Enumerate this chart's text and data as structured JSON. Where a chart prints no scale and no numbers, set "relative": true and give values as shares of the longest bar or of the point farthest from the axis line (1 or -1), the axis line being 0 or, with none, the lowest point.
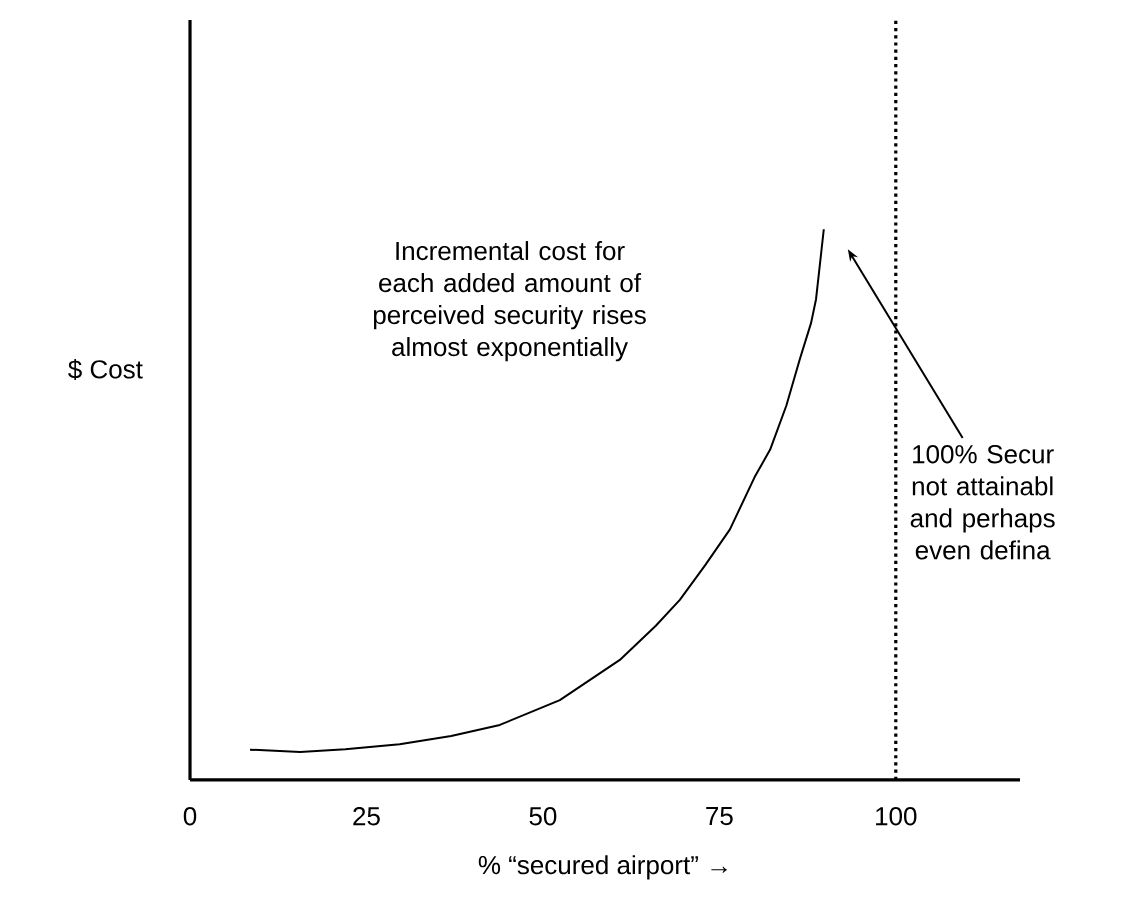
{
  "chart_data": {
    "type": "line",
    "relative": true,
    "xlabel": "% “secured airport” →",
    "ylabel": "$ Cost",
    "x": [
      8.5,
      12,
      15.6,
      22,
      29.7,
      37,
      43.9,
      52.4,
      60.9,
      66,
      69.4,
      73,
      76.5,
      80,
      82.2,
      84.5,
      86.4,
      88,
      88.7,
      89.8
    ],
    "series": [
      {
        "color": "#000000",
        "values": [
          0.055,
          0.053,
          0.051,
          0.056,
          0.065,
          0.08,
          0.1,
          0.145,
          0.218,
          0.28,
          0.327,
          0.39,
          0.455,
          0.55,
          0.6,
          0.68,
          0.764,
          0.83,
          0.873,
          1
        ]
      }
    ],
    "xlim": [
      0,
      117.6
    ],
    "xticks": [
      0,
      25,
      50,
      75,
      100
    ],
    "ref_lines": [
      {
        "axis": "x",
        "value": 100,
        "color": "#000000",
        "line_style": "dotted"
      }
    ],
    "annotations": [
      "Incremental cost for each added amount of perceived security rises almost exponentially",
      "100% Secur not attainabl and perhaps even defina"
    ],
    "marker": "none",
    "line_style": "solid",
    "grid": false
  }
}
